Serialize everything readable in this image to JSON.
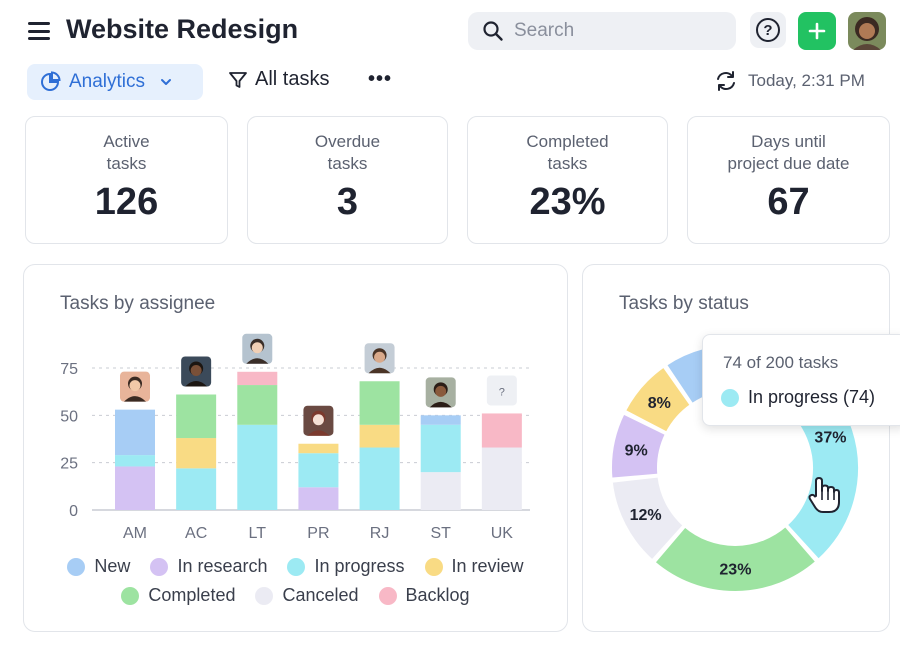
{
  "header": {
    "title": "Website Redesign",
    "search_placeholder": "Search",
    "help_label": "?",
    "add_label": "+"
  },
  "toolbar": {
    "view_label": "Analytics",
    "filter_label": "All tasks",
    "more_label": "•••",
    "updated_label": "Today, 2:31 PM"
  },
  "stats": [
    {
      "label": "Active\ntasks",
      "value": "126"
    },
    {
      "label": "Overdue\ntasks",
      "value": "3"
    },
    {
      "label": "Completed\ntasks",
      "value": "23%"
    },
    {
      "label": "Days until\nproject due date",
      "value": "67"
    }
  ],
  "colors": {
    "New": "#a7cdf5",
    "In research": "#d4c2f3",
    "In progress": "#9ceaf3",
    "In review": "#f9db84",
    "Completed": "#9de3a1",
    "Canceled": "#ebebf3",
    "Backlog": "#f8b8c6",
    "accent": "#2f6fd6",
    "add_button": "#22c262"
  },
  "assignee_panel": {
    "title": "Tasks by assignee",
    "legend_row1": [
      "New",
      "In research",
      "In progress",
      "In review"
    ],
    "legend_row2": [
      "Completed",
      "Canceled",
      "Backlog"
    ]
  },
  "status_panel": {
    "title": "Tasks by status",
    "tooltip_head": "74 of 200 tasks",
    "tooltip_label": "In progress (74)"
  },
  "chart_data": [
    {
      "type": "bar",
      "stacked": true,
      "title": "Tasks by assignee",
      "categories": [
        "AM",
        "AC",
        "LT",
        "PR",
        "RJ",
        "ST",
        "UK"
      ],
      "yticks": [
        0,
        25,
        50,
        75
      ],
      "ylim": [
        0,
        80
      ],
      "grid": true,
      "avatars": [
        "person-icon",
        "person-icon",
        "person-icon",
        "person-icon",
        "person-icon",
        "person-icon",
        "?"
      ],
      "series": [
        {
          "name": "In research",
          "values": [
            23,
            0,
            0,
            12,
            0,
            0,
            0
          ]
        },
        {
          "name": "Canceled",
          "values": [
            0,
            0,
            0,
            0,
            0,
            20,
            33
          ]
        },
        {
          "name": "In progress",
          "values": [
            6,
            22,
            45,
            18,
            33,
            25,
            0
          ]
        },
        {
          "name": "In review",
          "values": [
            0,
            16,
            0,
            5,
            12,
            0,
            0
          ]
        },
        {
          "name": "Completed",
          "values": [
            0,
            23,
            21,
            0,
            23,
            0,
            0
          ]
        },
        {
          "name": "New",
          "values": [
            24,
            0,
            0,
            0,
            0,
            5,
            0
          ]
        },
        {
          "name": "Backlog",
          "values": [
            0,
            0,
            7,
            0,
            0,
            0,
            18
          ]
        }
      ]
    },
    {
      "type": "pie",
      "donut": true,
      "title": "Tasks by status",
      "slices": [
        {
          "name": "In progress",
          "value": 37,
          "label": "37%"
        },
        {
          "name": "Completed",
          "value": 23,
          "label": "23%"
        },
        {
          "name": "Canceled",
          "value": 12,
          "label": "12%"
        },
        {
          "name": "In research",
          "value": 9,
          "label": "9%"
        },
        {
          "name": "In review",
          "value": 8,
          "label": "8%"
        },
        {
          "name": "New",
          "value": 11,
          "label": ""
        }
      ]
    }
  ]
}
